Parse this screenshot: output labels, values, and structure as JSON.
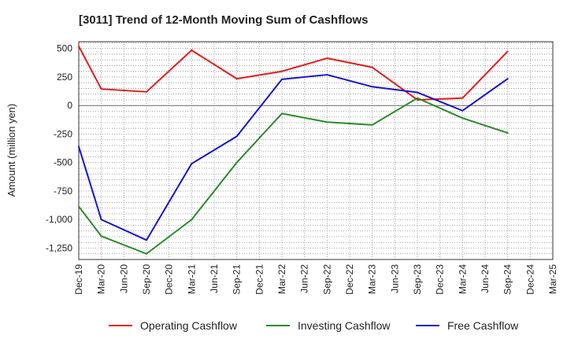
{
  "chart_data": {
    "type": "line",
    "title": "[3011]  Trend of 12-Month Moving Sum of Cashflows",
    "xlabel": "",
    "ylabel": "Amount (million yen)",
    "ylim": [
      -1350,
      560
    ],
    "yticks": [
      500,
      250,
      0,
      -250,
      -500,
      -750,
      -1000,
      -1250
    ],
    "ytick_labels": [
      "500",
      "250",
      "0",
      "-250",
      "-500",
      "-750",
      "-1,000",
      "-1,250"
    ],
    "categories": [
      "Dec-19",
      "Mar-20",
      "Jun-20",
      "Sep-20",
      "Dec-20",
      "Mar-21",
      "Jun-21",
      "Sep-21",
      "Dec-21",
      "Mar-22",
      "Jun-22",
      "Sep-22",
      "Dec-22",
      "Mar-23",
      "Jun-23",
      "Sep-23",
      "Dec-23",
      "Mar-24",
      "Jun-24",
      "Sep-24",
      "Dec-24",
      "Mar-25"
    ],
    "grid": true,
    "legend_position": "bottom",
    "series": [
      {
        "name": "Operating Cashflow",
        "color": "#e8191a",
        "points": [
          [
            "Dec-19",
            520
          ],
          [
            "Mar-20",
            145
          ],
          [
            "Sep-20",
            120
          ],
          [
            "Mar-21",
            485
          ],
          [
            "Sep-21",
            235
          ],
          [
            "Mar-22",
            300
          ],
          [
            "Sep-22",
            415
          ],
          [
            "Mar-23",
            335
          ],
          [
            "Sep-23",
            50
          ],
          [
            "Mar-24",
            65
          ],
          [
            "Sep-24",
            475
          ]
        ]
      },
      {
        "name": "Investing Cashflow",
        "color": "#2a8a2a",
        "points": [
          [
            "Dec-19",
            -885
          ],
          [
            "Mar-20",
            -1145
          ],
          [
            "Sep-20",
            -1300
          ],
          [
            "Mar-21",
            -1000
          ],
          [
            "Sep-21",
            -500
          ],
          [
            "Mar-22",
            -70
          ],
          [
            "Sep-22",
            -145
          ],
          [
            "Mar-23",
            -170
          ],
          [
            "Sep-23",
            65
          ],
          [
            "Mar-24",
            -110
          ],
          [
            "Sep-24",
            -240
          ]
        ]
      },
      {
        "name": "Free Cashflow",
        "color": "#1515d0",
        "points": [
          [
            "Dec-19",
            -360
          ],
          [
            "Mar-20",
            -1000
          ],
          [
            "Sep-20",
            -1180
          ],
          [
            "Mar-21",
            -510
          ],
          [
            "Sep-21",
            -270
          ],
          [
            "Mar-22",
            230
          ],
          [
            "Sep-22",
            270
          ],
          [
            "Mar-23",
            165
          ],
          [
            "Sep-23",
            115
          ],
          [
            "Mar-24",
            -45
          ],
          [
            "Sep-24",
            235
          ]
        ]
      }
    ]
  }
}
